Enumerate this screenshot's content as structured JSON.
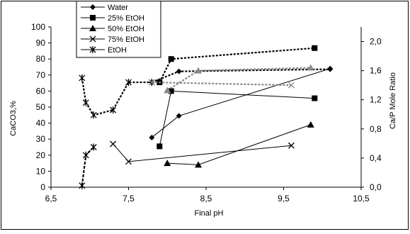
{
  "chart_data": {
    "type": "line",
    "xlabel": "Final pH",
    "ylabel": "CaCO3,%",
    "y2label": "Ca/P Mole Ratio",
    "xlim": [
      6.5,
      10.5
    ],
    "ylim": [
      0,
      100
    ],
    "y2lim": [
      0.0,
      2.2
    ],
    "x_ticks": [
      "6,5",
      "7,5",
      "8,5",
      "9,5",
      "10,5"
    ],
    "x_tick_values": [
      6.5,
      7.5,
      8.5,
      9.5,
      10.5
    ],
    "y_ticks": [
      "0",
      "10",
      "20",
      "30",
      "40",
      "50",
      "60",
      "70",
      "80",
      "90",
      "100"
    ],
    "y_tick_values": [
      0,
      10,
      20,
      30,
      40,
      50,
      60,
      70,
      80,
      90,
      100
    ],
    "y2_ticks": [
      "0,0",
      "0,4",
      "0,8",
      "1,2",
      "1,6",
      "2,0"
    ],
    "y2_tick_values": [
      0.0,
      0.4,
      0.8,
      1.2,
      1.6,
      2.0
    ],
    "grid": false,
    "legend_position": "top-left",
    "legend": [
      "Water",
      "25% EtOH",
      "50% EtOH",
      "75% EtOH",
      "EtOH"
    ],
    "series": [
      {
        "name": "Water",
        "axis": "left",
        "marker": "diamond",
        "line": "solid",
        "color": "#000000",
        "x": [
          7.8,
          8.15,
          10.1
        ],
        "y": [
          31,
          44.5,
          74
        ]
      },
      {
        "name": "25% EtOH",
        "axis": "left",
        "marker": "square",
        "line": "solid",
        "color": "#000000",
        "x": [
          7.9,
          8.05,
          9.9
        ],
        "y": [
          25.5,
          60,
          55.5
        ]
      },
      {
        "name": "50% EtOH",
        "axis": "left",
        "marker": "triangle",
        "line": "solid",
        "color": "#000000",
        "x": [
          8.0,
          8.4,
          9.85
        ],
        "y": [
          15,
          14,
          39
        ]
      },
      {
        "name": "75% EtOH",
        "axis": "left",
        "marker": "x",
        "line": "solid",
        "color": "#000000",
        "x": [
          7.3,
          7.5,
          9.6
        ],
        "y": [
          27,
          16,
          26
        ]
      },
      {
        "name": "EtOH",
        "axis": "left",
        "marker": "star",
        "line": "dashed",
        "color": "#000000",
        "x": [
          6.9,
          6.95,
          7.05
        ],
        "y": [
          1,
          20,
          25
        ]
      },
      {
        "name": "",
        "axis": "right",
        "marker": "star",
        "line": "dotted",
        "color": "#000000",
        "x": [
          6.9,
          6.95,
          7.05,
          7.3,
          7.5,
          7.8
        ],
        "y": [
          1.5,
          1.16,
          0.99,
          1.06,
          1.44,
          1.44
        ]
      },
      {
        "name": "",
        "axis": "right",
        "marker": "diamond",
        "line": "dotted",
        "color": "#000000",
        "x": [
          7.8,
          8.15,
          10.1
        ],
        "y": [
          1.44,
          1.59,
          1.62
        ]
      },
      {
        "name": "",
        "axis": "right",
        "marker": "square",
        "line": "dotted",
        "color": "#000000",
        "x": [
          7.9,
          8.05,
          9.9
        ],
        "y": [
          1.44,
          1.76,
          1.91
        ]
      },
      {
        "name": "",
        "axis": "right",
        "marker": "triangle",
        "line": "dotted",
        "color": "#888888",
        "x": [
          8.0,
          8.4,
          9.85
        ],
        "y": [
          1.33,
          1.6,
          1.64
        ]
      },
      {
        "name": "",
        "axis": "right",
        "marker": "x",
        "line": "dotted",
        "color": "#888888",
        "x": [
          7.8,
          9.6
        ],
        "y": [
          1.44,
          1.4
        ]
      }
    ]
  }
}
